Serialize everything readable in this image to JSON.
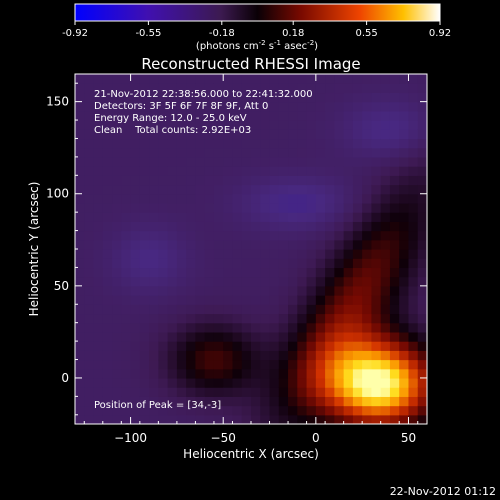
{
  "chart_data": {
    "type": "heatmap",
    "title": "Reconstructed RHESSI Image",
    "xlabel": "Heliocentric X (arcsec)",
    "ylabel": "Heliocentric Y (arcsec)",
    "xlim": [
      -130,
      60
    ],
    "ylim": [
      -25,
      165
    ],
    "x_ticks": [
      -100,
      -50,
      0,
      50
    ],
    "y_ticks": [
      0,
      50,
      100,
      150
    ],
    "annotations": [
      "21-Nov-2012 22:38:56.000 to 22:41:32.000",
      "Detectors: 3F 5F 6F 7F 8F 9F, Att 0",
      "Energy Range: 12.0 - 25.0 keV",
      "Clean    Total counts: 2.92E+03"
    ],
    "peak_label": "Position of Peak = [34,-3]",
    "peak": [
      34,
      -3
    ],
    "colorbar": {
      "ticks": [
        "-0.92",
        "-0.55",
        "-0.18",
        "0.18",
        "0.55",
        "0.92"
      ],
      "range": [
        -0.92,
        0.92
      ],
      "units_prefix": "(photons cm",
      "units_sup1": "-2",
      "units_mid1": " s",
      "units_sup2": "-1",
      "units_mid2": " asec",
      "units_sup3": "-2",
      "units_suffix": ")"
    },
    "colors": {
      "map_low": "#1a00c8",
      "map_mid_low": "#3a1656",
      "map_zero": "#0e0008",
      "map_mid_high": "#a2200a",
      "map_high": "#ffff90"
    },
    "timestamp": "22-Nov-2012 01:12"
  }
}
